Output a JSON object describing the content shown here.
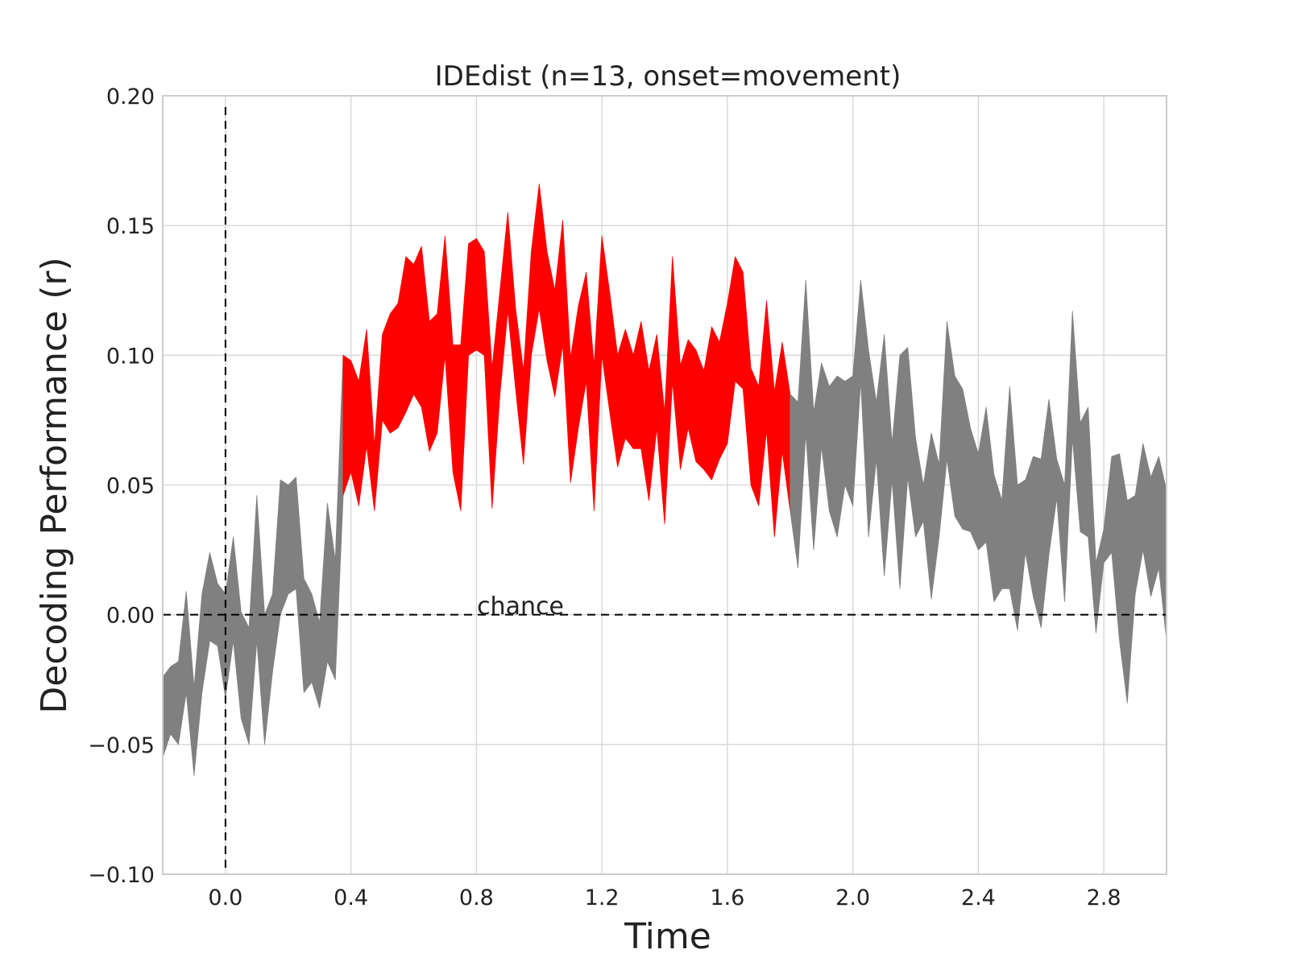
{
  "chart_data": {
    "type": "area",
    "title": "IDEdist (n=13, onset=movement)",
    "xlabel": "Time",
    "ylabel": "Decoding Performance (r)",
    "xlim": [
      -0.2,
      3.0
    ],
    "ylim": [
      -0.1,
      0.2
    ],
    "xticks": [
      0.0,
      0.4,
      0.8,
      1.2,
      1.6,
      2.0,
      2.4,
      2.8
    ],
    "xtick_labels": [
      "0.0",
      "0.4",
      "0.8",
      "1.2",
      "1.6",
      "2.0",
      "2.4",
      "2.8"
    ],
    "yticks": [
      -0.1,
      -0.05,
      0.0,
      0.05,
      0.1,
      0.15,
      0.2
    ],
    "ytick_labels": [
      "−0.10",
      "−0.05",
      "0.00",
      "0.05",
      "0.10",
      "0.15",
      "0.20"
    ],
    "grid": true,
    "onset_line_x": 0.0,
    "chance_level": 0.0,
    "chance_label": "chance",
    "colors": {
      "significant": "#ff0000",
      "nonsignificant": "#808080",
      "grid": "#d9d9d9",
      "frame": "#cccccc"
    },
    "series": [
      {
        "x": [
          -0.2,
          -0.175,
          -0.15,
          -0.125,
          -0.1,
          -0.075,
          -0.05,
          -0.025,
          0.0,
          0.025,
          0.05,
          0.075,
          0.1,
          0.125,
          0.15,
          0.175,
          0.2,
          0.225,
          0.25,
          0.275,
          0.3,
          0.325,
          0.35
        ],
        "upper": [
          -0.024,
          -0.02,
          -0.018,
          0.009,
          -0.028,
          0.008,
          0.024,
          0.012,
          0.008,
          0.03,
          0.001,
          -0.005,
          0.046,
          0.0,
          0.008,
          0.052,
          0.05,
          0.053,
          0.014,
          0.008,
          -0.003,
          0.043,
          0.021
        ],
        "lower": [
          -0.055,
          -0.046,
          -0.05,
          -0.03,
          -0.062,
          -0.03,
          -0.01,
          -0.012,
          -0.032,
          -0.01,
          -0.04,
          -0.05,
          -0.01,
          -0.05,
          -0.022,
          0.0,
          0.008,
          0.01,
          -0.03,
          -0.026,
          -0.036,
          -0.018,
          -0.025
        ],
        "significant": false
      },
      {
        "x": [
          0.35,
          0.375
        ],
        "upper": [
          0.021,
          0.1
        ],
        "lower": [
          -0.025,
          0.045
        ],
        "significant": false
      },
      {
        "x": [
          0.375,
          0.4,
          0.425,
          0.45,
          0.475,
          0.5,
          0.525,
          0.55,
          0.575,
          0.6,
          0.625,
          0.65,
          0.675,
          0.7,
          0.725,
          0.75,
          0.775,
          0.8,
          0.825,
          0.85,
          0.875,
          0.9,
          0.925,
          0.95,
          0.975,
          1.0,
          1.025,
          1.05,
          1.075,
          1.1,
          1.125,
          1.15,
          1.175,
          1.2,
          1.225,
          1.25,
          1.275,
          1.3,
          1.325,
          1.35,
          1.375,
          1.4,
          1.425,
          1.45,
          1.475,
          1.5,
          1.525,
          1.55,
          1.575,
          1.6,
          1.625,
          1.65,
          1.675,
          1.7,
          1.725,
          1.75,
          1.775,
          1.8
        ],
        "upper": [
          0.1,
          0.098,
          0.09,
          0.11,
          0.065,
          0.108,
          0.116,
          0.12,
          0.138,
          0.135,
          0.142,
          0.113,
          0.116,
          0.146,
          0.104,
          0.104,
          0.143,
          0.145,
          0.14,
          0.095,
          0.125,
          0.155,
          0.118,
          0.094,
          0.14,
          0.166,
          0.14,
          0.125,
          0.152,
          0.099,
          0.119,
          0.132,
          0.096,
          0.146,
          0.124,
          0.1,
          0.11,
          0.1,
          0.113,
          0.094,
          0.108,
          0.078,
          0.138,
          0.096,
          0.106,
          0.102,
          0.094,
          0.111,
          0.105,
          0.12,
          0.138,
          0.132,
          0.095,
          0.088,
          0.121,
          0.086,
          0.105,
          0.085
        ],
        "lower": [
          0.046,
          0.055,
          0.042,
          0.065,
          0.04,
          0.075,
          0.07,
          0.072,
          0.078,
          0.085,
          0.08,
          0.063,
          0.07,
          0.1,
          0.055,
          0.04,
          0.1,
          0.102,
          0.1,
          0.041,
          0.085,
          0.117,
          0.087,
          0.058,
          0.1,
          0.118,
          0.098,
          0.084,
          0.104,
          0.051,
          0.072,
          0.09,
          0.04,
          0.1,
          0.078,
          0.057,
          0.068,
          0.064,
          0.064,
          0.044,
          0.072,
          0.035,
          0.09,
          0.056,
          0.072,
          0.059,
          0.056,
          0.052,
          0.06,
          0.066,
          0.09,
          0.087,
          0.05,
          0.042,
          0.071,
          0.03,
          0.063,
          0.04
        ],
        "significant": true
      },
      {
        "x": [
          1.8,
          1.825,
          1.85,
          1.875,
          1.9,
          1.925,
          1.95,
          1.975,
          2.0,
          2.025,
          2.05,
          2.075,
          2.1,
          2.125,
          2.15,
          2.175,
          2.2,
          2.225,
          2.25,
          2.275,
          2.3,
          2.325,
          2.35,
          2.375,
          2.4,
          2.425,
          2.45,
          2.475,
          2.5,
          2.525,
          2.55,
          2.575,
          2.6,
          2.625,
          2.65,
          2.675,
          2.7,
          2.725,
          2.75,
          2.775,
          2.8,
          2.825,
          2.85,
          2.875,
          2.9,
          2.925,
          2.95,
          2.975,
          3.0
        ],
        "upper": [
          0.085,
          0.082,
          0.129,
          0.078,
          0.097,
          0.088,
          0.092,
          0.09,
          0.092,
          0.129,
          0.102,
          0.082,
          0.108,
          0.066,
          0.1,
          0.103,
          0.068,
          0.05,
          0.07,
          0.058,
          0.113,
          0.092,
          0.087,
          0.072,
          0.062,
          0.08,
          0.054,
          0.044,
          0.088,
          0.05,
          0.052,
          0.061,
          0.06,
          0.083,
          0.06,
          0.05,
          0.117,
          0.074,
          0.08,
          0.02,
          0.033,
          0.061,
          0.062,
          0.044,
          0.046,
          0.066,
          0.053,
          0.061,
          0.048
        ],
        "lower": [
          0.04,
          0.018,
          0.07,
          0.025,
          0.065,
          0.04,
          0.03,
          0.05,
          0.042,
          0.09,
          0.03,
          0.06,
          0.015,
          0.052,
          0.01,
          0.053,
          0.03,
          0.036,
          0.006,
          0.03,
          0.06,
          0.038,
          0.033,
          0.032,
          0.025,
          0.028,
          0.005,
          0.01,
          0.01,
          -0.006,
          0.024,
          0.007,
          -0.005,
          0.023,
          0.045,
          0.005,
          0.068,
          0.032,
          0.03,
          -0.007,
          0.02,
          0.024,
          -0.01,
          -0.034,
          0.008,
          0.025,
          0.007,
          0.018,
          -0.01
        ],
        "significant": false
      }
    ]
  }
}
